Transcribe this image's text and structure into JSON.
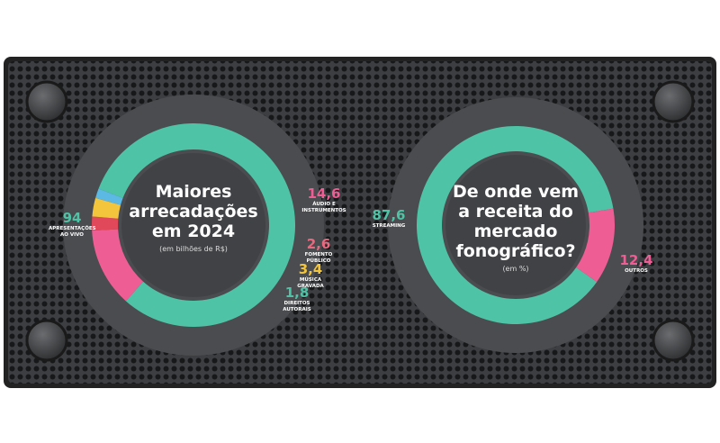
{
  "chart_data": [
    {
      "type": "donut",
      "title": "Maiores arrecadações em 2024",
      "subtitle": "(em bilhões de R$)",
      "categories": [
        "APRESENTAÇÕES AO VIVO",
        "ÁUDIO E INSTRUMENTOS",
        "FOMENTO PÚBLICO",
        "MÚSICA GRAVADA",
        "DIREITOS AUTORAIS"
      ],
      "values": [
        94,
        14.6,
        2.6,
        3.4,
        1.8
      ],
      "value_labels": [
        "94",
        "14,6",
        "2,6",
        "3,4",
        "1,8"
      ],
      "colors": [
        "#4fc3a6",
        "#ee5d93",
        "#e1485a",
        "#f2c53d",
        "#5bb9e3"
      ]
    },
    {
      "type": "donut",
      "title": "De onde vem a receita do mercado fonográfico?",
      "subtitle": "(em %)",
      "categories": [
        "STREAMING",
        "OUTROS"
      ],
      "values": [
        87.6,
        12.4
      ],
      "value_labels": [
        "87,6",
        "12,4"
      ],
      "colors": [
        "#4fc3a6",
        "#ee5d93"
      ]
    }
  ]
}
